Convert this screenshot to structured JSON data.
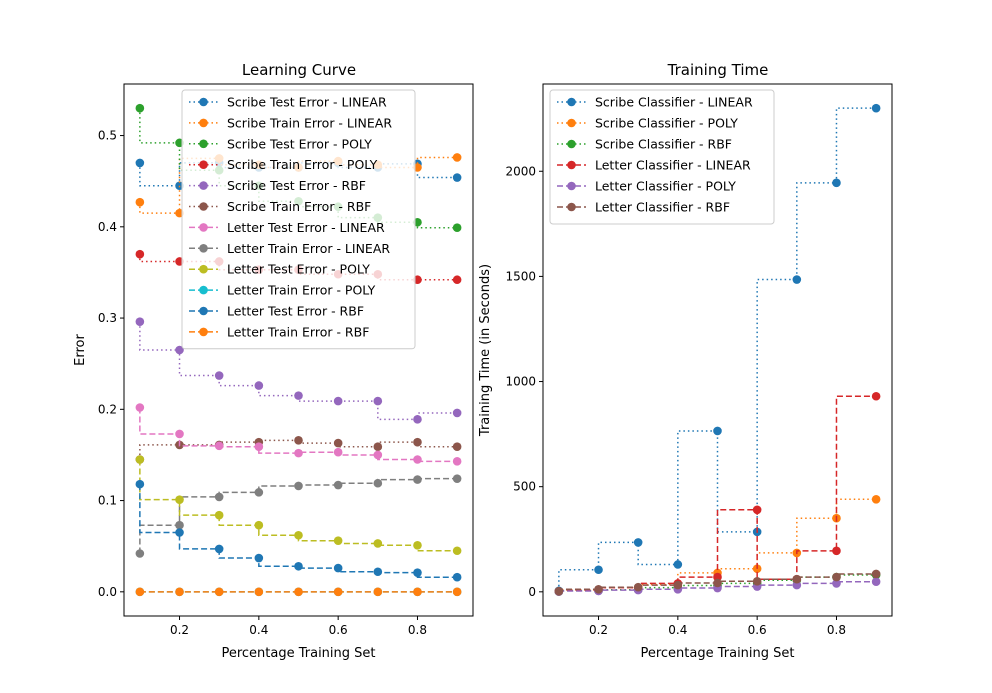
{
  "chart_data": [
    {
      "type": "line",
      "title": "Learning Curve",
      "xlabel": "Percentage Training Set",
      "ylabel": "Error",
      "xlim": [
        0.06,
        0.94
      ],
      "ylim": [
        -0.0265,
        0.5565
      ],
      "xticks": [
        0.2,
        0.4,
        0.6,
        0.8
      ],
      "xtick_labels": [
        "0.2",
        "0.4",
        "0.6",
        "0.8"
      ],
      "yticks": [
        0.0,
        0.1,
        0.2,
        0.3,
        0.4,
        0.5
      ],
      "ytick_labels": [
        "0.0",
        "0.1",
        "0.2",
        "0.3",
        "0.4",
        "0.5"
      ],
      "grid": false,
      "legend": "upper-center",
      "x": [
        0.1,
        0.2,
        0.3,
        0.4,
        0.5,
        0.6,
        0.7,
        0.8,
        0.9
      ],
      "series": [
        {
          "name": "Scribe Test Error - LINEAR",
          "color": "#1f77b4",
          "dash": "dotted",
          "values": [
            0.47,
            0.445,
            0.47,
            0.465,
            0.465,
            0.47,
            0.465,
            0.469,
            0.454
          ]
        },
        {
          "name": "Scribe Train Error - LINEAR",
          "color": "#ff7f0e",
          "dash": "dotted",
          "values": [
            0.427,
            0.415,
            0.475,
            0.468,
            0.465,
            0.472,
            0.468,
            0.465,
            0.476
          ]
        },
        {
          "name": "Scribe Test Error - POLY",
          "color": "#2ca02c",
          "dash": "dotted",
          "values": [
            0.53,
            0.492,
            0.462,
            0.445,
            0.428,
            0.422,
            0.41,
            0.405,
            0.399
          ]
        },
        {
          "name": "Scribe Train Error - POLY",
          "color": "#d62728",
          "dash": "dotted",
          "values": [
            0.37,
            0.362,
            0.362,
            0.353,
            0.353,
            0.348,
            0.348,
            0.342,
            0.342
          ]
        },
        {
          "name": "Scribe Test Error - RBF",
          "color": "#9467bd",
          "dash": "dotted",
          "values": [
            0.296,
            0.265,
            0.237,
            0.226,
            0.215,
            0.209,
            0.209,
            0.189,
            0.196
          ]
        },
        {
          "name": "Scribe Train Error - RBF",
          "color": "#8c564b",
          "dash": "dotted",
          "values": [
            0.145,
            0.161,
            0.161,
            0.164,
            0.166,
            0.163,
            0.159,
            0.164,
            0.159
          ]
        },
        {
          "name": "Letter Test Error - LINEAR",
          "color": "#e377c2",
          "dash": "dashed",
          "values": [
            0.202,
            0.173,
            0.16,
            0.159,
            0.152,
            0.153,
            0.15,
            0.145,
            0.143
          ]
        },
        {
          "name": "Letter Train Error - LINEAR",
          "color": "#7f7f7f",
          "dash": "dashed",
          "values": [
            0.042,
            0.073,
            0.104,
            0.109,
            0.116,
            0.117,
            0.119,
            0.123,
            0.124
          ]
        },
        {
          "name": "Letter Test Error - POLY",
          "color": "#bcbd22",
          "dash": "dashed",
          "values": [
            0.145,
            0.101,
            0.084,
            0.073,
            0.062,
            0.056,
            0.053,
            0.051,
            0.045
          ]
        },
        {
          "name": "Letter Train Error - POLY",
          "color": "#17becf",
          "dash": "dashed",
          "values": [
            0.0,
            0.0,
            0.0,
            0.0,
            0.0,
            0.0,
            0.0,
            0.0,
            0.0
          ]
        },
        {
          "name": "Letter Test Error - RBF",
          "color": "#1f77b4",
          "dash": "dashed",
          "values": [
            0.118,
            0.065,
            0.047,
            0.037,
            0.028,
            0.026,
            0.022,
            0.021,
            0.016
          ]
        },
        {
          "name": "Letter Train Error - RBF",
          "color": "#ff7f0e",
          "dash": "dashed",
          "values": [
            0.0,
            0.0,
            0.0,
            0.0,
            0.0,
            0.0,
            0.0,
            0.0,
            0.0
          ]
        }
      ]
    },
    {
      "type": "line",
      "title": "Training Time",
      "xlabel": "Percentage Training Set",
      "ylabel": "Training Time (in Seconds)",
      "xlim": [
        0.06,
        0.94
      ],
      "ylim": [
        -115,
        2415
      ],
      "xticks": [
        0.2,
        0.4,
        0.6,
        0.8
      ],
      "xtick_labels": [
        "0.2",
        "0.4",
        "0.6",
        "0.8"
      ],
      "yticks": [
        0,
        500,
        1000,
        1500,
        2000
      ],
      "ytick_labels": [
        "0",
        "500",
        "1000",
        "1500",
        "2000"
      ],
      "grid": false,
      "legend": "upper-left",
      "x": [
        0.1,
        0.2,
        0.3,
        0.4,
        0.5,
        0.6,
        0.7,
        0.8,
        0.9
      ],
      "series": [
        {
          "name": "Scribe Classifier - LINEAR",
          "color": "#1f77b4",
          "dash": "dotted",
          "values": [
            5,
            105,
            235,
            130,
            765,
            285,
            1485,
            1945,
            2300
          ]
        },
        {
          "name": "Scribe Classifier - POLY",
          "color": "#ff7f0e",
          "dash": "dotted",
          "values": [
            2,
            8,
            20,
            35,
            90,
            110,
            185,
            350,
            440
          ]
        },
        {
          "name": "Scribe Classifier - RBF",
          "color": "#2ca02c",
          "dash": "dotted",
          "values": [
            1,
            5,
            10,
            20,
            30,
            40,
            55,
            70,
            80
          ]
        },
        {
          "name": "Letter Classifier - LINEAR",
          "color": "#d62728",
          "dash": "dashed",
          "values": [
            2,
            10,
            20,
            40,
            70,
            390,
            60,
            195,
            930
          ]
        },
        {
          "name": "Letter Classifier - POLY",
          "color": "#9467bd",
          "dash": "dashed",
          "values": [
            1,
            4,
            8,
            12,
            18,
            25,
            32,
            40,
            48
          ]
        },
        {
          "name": "Letter Classifier - RBF",
          "color": "#8c564b",
          "dash": "dashed",
          "values": [
            3,
            12,
            22,
            32,
            42,
            50,
            60,
            70,
            85
          ]
        }
      ]
    }
  ]
}
